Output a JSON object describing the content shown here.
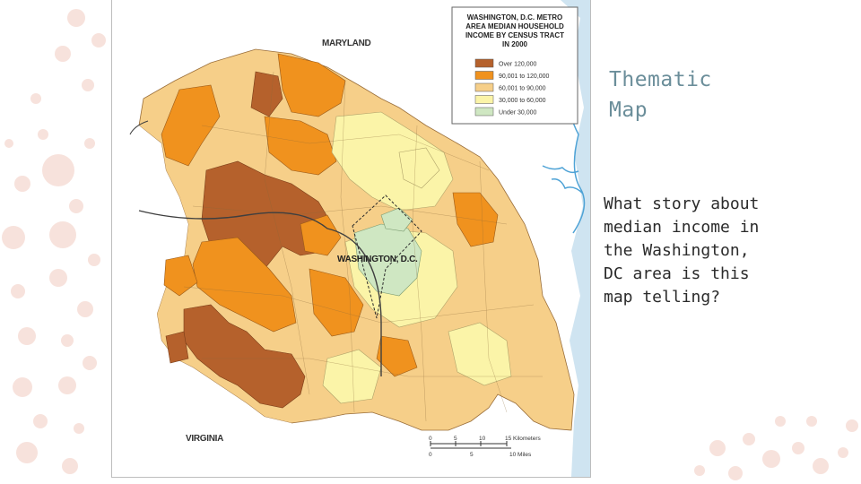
{
  "slide": {
    "title_line1": "Thematic",
    "title_line2": "Map",
    "body": "What story about median income in the Washington, DC area is this map telling?"
  },
  "map": {
    "legend": {
      "title_lines": [
        "WASHINGTON, D.C. METRO",
        "AREA MEDIAN HOUSEHOLD",
        "INCOME BY CENSUS TRACT",
        "IN 2000"
      ],
      "items": [
        {
          "label": "Over 120,000",
          "color": "#b5612c"
        },
        {
          "label": "90,001 to 120,000",
          "color": "#f0921e"
        },
        {
          "label": "60,001 to 90,000",
          "color": "#f6cf89"
        },
        {
          "label": "30,000 to 60,000",
          "color": "#fbf4a8"
        },
        {
          "label": "Under 30,000",
          "color": "#cfe7c2"
        }
      ]
    },
    "place_labels": {
      "maryland": "MARYLAND",
      "virginia": "VIRGINIA",
      "washington": "WASHINGTON, D.C."
    },
    "scale": {
      "km_ticks": [
        "0",
        "5",
        "10",
        "15 Kilometers"
      ],
      "mile_ticks": [
        "0",
        "5",
        "10 Miles"
      ]
    },
    "colors": {
      "water": "#cfe4f1",
      "river": "#4fa3d6",
      "background": "#ffffff"
    }
  }
}
